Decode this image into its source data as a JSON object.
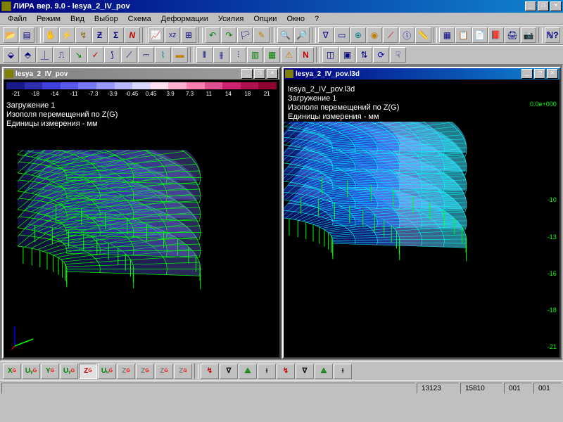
{
  "app": {
    "title": "ЛИРА вер. 9.0 - lesya_2_IV_pov"
  },
  "menu": [
    "Файл",
    "Режим",
    "Вид",
    "Выбор",
    "Схема",
    "Деформации",
    "Усилия",
    "Опции",
    "Окно",
    "?"
  ],
  "colorbar": {
    "colors": [
      "#1a1a8a",
      "#2d2db0",
      "#4040e0",
      "#5a5af0",
      "#7878ff",
      "#9898ff",
      "#b8b8ff",
      "#d8d8ff",
      "#ffe0f0",
      "#ffb0d0",
      "#ff80b0",
      "#e05090",
      "#d02070",
      "#b01050",
      "#900030"
    ],
    "ticks": [
      "-21",
      "-18",
      "-14",
      "-11",
      "-7.3",
      "-3.9",
      "-0.45",
      "0.45",
      "3.9",
      "7.3",
      "11",
      "14",
      "18",
      "21"
    ]
  },
  "left": {
    "title": "lesya_2_IV_pov",
    "loading": "Загружение 1",
    "field": "Изополя  перемещений по Z(G)",
    "units": "Единицы измерения - мм",
    "mesh_color": "#00ff00",
    "contour_colors": [
      "#2d2db0",
      "#4040e0",
      "#5a5af0",
      "#7878ff",
      "#9898ff",
      "#b8b8ff"
    ]
  },
  "right": {
    "title": "lesya_2_IV_pov.l3d",
    "heading": "lesya_2_IV_pov.l3d",
    "loading": "Загружение 1",
    "field": "Изополя  перемещений по Z(G)",
    "units": "Единицы измерения - мм",
    "vbar_colors": [
      "#00ff80",
      "#00ffc0",
      "#00ffff",
      "#40e0ff",
      "#60c0ff",
      "#80a0ff",
      "#4060ff",
      "#2040e0",
      "#1020b0"
    ],
    "vbar_ticks": [
      "0.0e+000",
      "",
      "",
      "-10",
      "-13",
      "-16",
      "-18",
      "-21"
    ],
    "mesh_color": "#00ffff",
    "pin_color": "#00ff00"
  },
  "bottom_buttons": [
    {
      "t": "X",
      "c": "#008000"
    },
    {
      "t": "Uᵧ",
      "c": "#008000"
    },
    {
      "t": "Y",
      "c": "#008000"
    },
    {
      "t": "Uᵧ",
      "c": "#008000"
    },
    {
      "t": "Z",
      "c": "#c00000",
      "pressed": true
    },
    {
      "t": "Uᵤ",
      "c": "#008000"
    },
    {
      "t": "Z",
      "c": "#808080"
    },
    {
      "t": "Z",
      "c": "#808080"
    },
    {
      "t": "Z",
      "c": "#808080"
    },
    {
      "t": "Z",
      "c": "#808080"
    }
  ],
  "status": {
    "a": "13123",
    "b": "15810",
    "c": "001",
    "d": "001"
  }
}
